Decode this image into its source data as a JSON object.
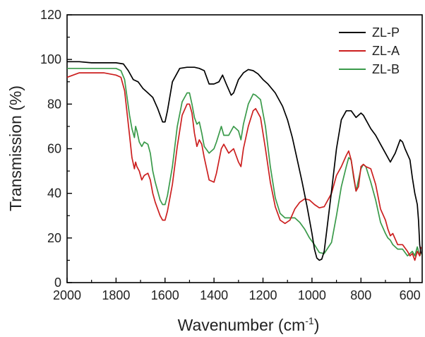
{
  "chart_data": {
    "type": "line",
    "title": "",
    "xlabel": "Wavenumber (cm",
    "xlabel_sup": "-1",
    "xlabel_close": ")",
    "ylabel": "Transmission (%)",
    "xlim": [
      2000,
      550
    ],
    "ylim": [
      0,
      120
    ],
    "x_ticks": [
      2000,
      1800,
      1600,
      1400,
      1200,
      1000,
      800,
      600
    ],
    "y_ticks": [
      0,
      20,
      40,
      60,
      80,
      100,
      120
    ],
    "legend_position": "top-right",
    "grid": false,
    "series": [
      {
        "name": "ZL-P",
        "color": "#000000",
        "x": [
          2000,
          1950,
          1900,
          1850,
          1800,
          1770,
          1750,
          1730,
          1710,
          1690,
          1670,
          1650,
          1630,
          1610,
          1600,
          1590,
          1570,
          1540,
          1510,
          1480,
          1460,
          1440,
          1420,
          1400,
          1380,
          1365,
          1350,
          1330,
          1320,
          1300,
          1280,
          1260,
          1240,
          1220,
          1200,
          1180,
          1150,
          1120,
          1100,
          1080,
          1060,
          1040,
          1020,
          1000,
          990,
          980,
          970,
          960,
          950,
          940,
          920,
          900,
          880,
          860,
          840,
          820,
          800,
          790,
          780,
          760,
          740,
          720,
          700,
          680,
          660,
          640,
          630,
          620,
          600,
          590,
          580,
          570,
          565,
          560,
          555
        ],
        "values": [
          99,
          99,
          98.5,
          98.5,
          98.5,
          98,
          95,
          91,
          90,
          87,
          85,
          83,
          78,
          72,
          72,
          77,
          90,
          96,
          96.5,
          96.5,
          96,
          95,
          89,
          89,
          90,
          93,
          89,
          84,
          85,
          91,
          94,
          95.5,
          95,
          93.5,
          91,
          89,
          85,
          79,
          73,
          65,
          55,
          45,
          34,
          22,
          15,
          11,
          10,
          10.5,
          14,
          23,
          41,
          60,
          73,
          77,
          77,
          74,
          76,
          75,
          73,
          69,
          66,
          62,
          58,
          54,
          58,
          64,
          63,
          60,
          55,
          47,
          40,
          35,
          28,
          17,
          13
        ]
      },
      {
        "name": "ZL-A",
        "color": "#cc1f1f",
        "x": [
          2000,
          1950,
          1900,
          1850,
          1800,
          1780,
          1765,
          1755,
          1745,
          1735,
          1725,
          1720,
          1715,
          1705,
          1695,
          1685,
          1670,
          1660,
          1650,
          1640,
          1620,
          1610,
          1600,
          1590,
          1570,
          1550,
          1530,
          1510,
          1500,
          1490,
          1480,
          1470,
          1460,
          1450,
          1440,
          1420,
          1400,
          1390,
          1370,
          1360,
          1340,
          1320,
          1300,
          1290,
          1280,
          1260,
          1240,
          1230,
          1210,
          1190,
          1170,
          1150,
          1130,
          1110,
          1090,
          1070,
          1050,
          1030,
          1010,
          990,
          970,
          950,
          920,
          900,
          880,
          860,
          850,
          840,
          830,
          820,
          810,
          800,
          790,
          780,
          760,
          740,
          720,
          700,
          690,
          680,
          670,
          650,
          630,
          610,
          600,
          590,
          580,
          570,
          560,
          555
        ],
        "values": [
          92,
          94,
          94,
          94,
          93,
          92,
          86,
          76,
          66,
          56,
          51,
          54,
          52,
          50,
          46,
          48,
          49,
          46,
          40,
          36,
          30,
          28,
          28,
          32,
          44,
          61,
          75,
          80,
          80,
          76,
          67,
          61,
          64,
          62,
          56,
          46,
          45,
          49,
          60,
          62,
          58,
          60,
          54,
          52,
          60,
          70,
          77,
          78,
          74,
          60,
          45,
          34,
          28,
          26.5,
          28,
          33,
          36,
          37.5,
          37,
          35,
          33.5,
          34,
          40,
          48,
          52,
          57,
          59,
          55,
          48,
          41,
          43,
          52,
          53,
          52,
          51,
          44,
          33,
          28,
          24,
          21,
          22,
          17,
          17,
          14,
          12,
          13,
          10,
          14,
          12,
          16
        ]
      },
      {
        "name": "ZL-B",
        "color": "#3a9a4a",
        "x": [
          2000,
          1950,
          1900,
          1850,
          1800,
          1780,
          1765,
          1755,
          1745,
          1735,
          1725,
          1720,
          1715,
          1705,
          1695,
          1685,
          1670,
          1660,
          1650,
          1640,
          1620,
          1610,
          1600,
          1590,
          1570,
          1550,
          1530,
          1510,
          1500,
          1490,
          1480,
          1470,
          1460,
          1450,
          1440,
          1420,
          1400,
          1390,
          1370,
          1360,
          1340,
          1320,
          1300,
          1290,
          1280,
          1260,
          1240,
          1230,
          1210,
          1190,
          1170,
          1150,
          1130,
          1110,
          1090,
          1070,
          1050,
          1030,
          1010,
          990,
          970,
          950,
          920,
          900,
          880,
          860,
          850,
          840,
          830,
          820,
          810,
          800,
          790,
          780,
          760,
          740,
          720,
          700,
          690,
          680,
          670,
          650,
          630,
          610,
          600,
          590,
          580,
          570,
          560,
          555
        ],
        "values": [
          96,
          96,
          96,
          96,
          96,
          95,
          91,
          83,
          75,
          69,
          65,
          70,
          68,
          63,
          61,
          63,
          62,
          58,
          50,
          45,
          37,
          35,
          35,
          39,
          52,
          70,
          81,
          85,
          85,
          80,
          74,
          71,
          72,
          67,
          61,
          58,
          60,
          63,
          70,
          66,
          66,
          70,
          68,
          64,
          71,
          80,
          84.5,
          84,
          82,
          70,
          52,
          38,
          31,
          29,
          29,
          29,
          27,
          24,
          20,
          17,
          13.5,
          13,
          18,
          30,
          43,
          52,
          56,
          55,
          47,
          41,
          46,
          51,
          53,
          52,
          45,
          37,
          27,
          22,
          20,
          19,
          17,
          15,
          15,
          12,
          13,
          14,
          12,
          16,
          12,
          13
        ]
      }
    ]
  }
}
